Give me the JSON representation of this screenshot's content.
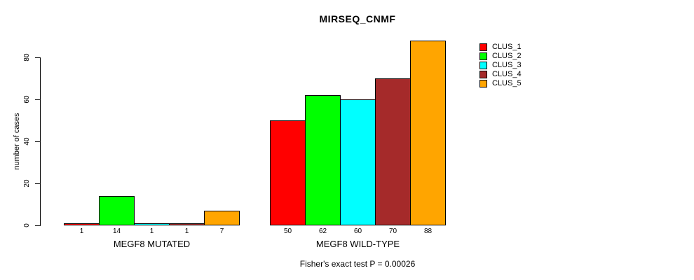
{
  "chart_data": {
    "type": "bar",
    "title": "MIRSEQ_CNMF",
    "ylabel": "number of cases",
    "xlabel": "",
    "categories": [
      "MEGF8 MUTATED",
      "MEGF8 WILD-TYPE"
    ],
    "series": [
      {
        "name": "CLUS_1",
        "color": "#FF0000",
        "values": [
          1,
          50
        ]
      },
      {
        "name": "CLUS_2",
        "color": "#00FF00",
        "values": [
          14,
          62
        ]
      },
      {
        "name": "CLUS_3",
        "color": "#00FFFF",
        "values": [
          1,
          60
        ]
      },
      {
        "name": "CLUS_4",
        "color": "#A52A2A",
        "values": [
          1,
          70
        ]
      },
      {
        "name": "CLUS_5",
        "color": "#FFA500",
        "values": [
          7,
          88
        ]
      }
    ],
    "yticks": [
      0,
      20,
      40,
      60,
      80
    ],
    "ylim": [
      0,
      88
    ],
    "bar_value_labels_shown": true,
    "legend_position": "right",
    "grid": false,
    "axis_color": "#000000",
    "background_color": "#FFFFFF",
    "caption": "Fisher's exact test P = 0.00026"
  }
}
